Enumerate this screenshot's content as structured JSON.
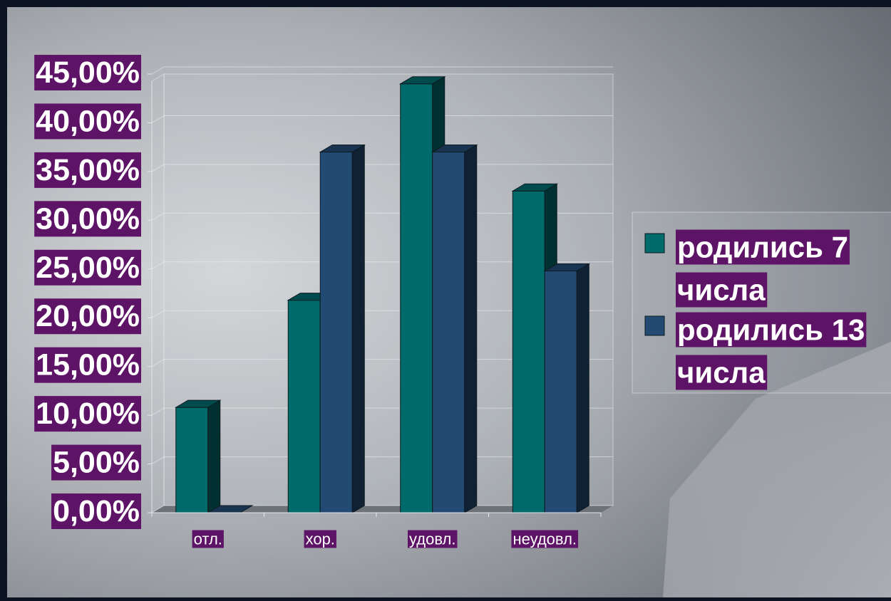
{
  "colors": {
    "series_1": "#006b6b",
    "series_2": "#234a72",
    "label_background": "#5e1466",
    "label_text": "#ffffff",
    "frame": "#0b1420"
  },
  "chart_data": {
    "type": "bar",
    "style": "3d-clustered-column",
    "categories": [
      "отл.",
      "хор.",
      "удовл.",
      "неудовл."
    ],
    "series": [
      {
        "name": "родились 7 числа",
        "name_lines": [
          "родились 7",
          "числа"
        ],
        "values": [
          10.8,
          21.8,
          44.0,
          33.0
        ]
      },
      {
        "name": "родились 13 числа",
        "name_lines": [
          "родились 13",
          "числа"
        ],
        "values": [
          0.0,
          37.0,
          37.0,
          24.8
        ]
      }
    ],
    "ylim": [
      0,
      45
    ],
    "y_ticks": [
      {
        "value": 0,
        "label": "0,00%"
      },
      {
        "value": 5,
        "label": "5,00%"
      },
      {
        "value": 10,
        "label": "10,00%"
      },
      {
        "value": 15,
        "label": "15,00%"
      },
      {
        "value": 20,
        "label": "20,00%"
      },
      {
        "value": 25,
        "label": "25,00%"
      },
      {
        "value": 30,
        "label": "30,00%"
      },
      {
        "value": 35,
        "label": "35,00%"
      },
      {
        "value": 40,
        "label": "40,00%"
      },
      {
        "value": 45,
        "label": "45,00%"
      }
    ],
    "title": "",
    "xlabel": "",
    "ylabel": "",
    "grid": true,
    "legend_position": "right"
  }
}
